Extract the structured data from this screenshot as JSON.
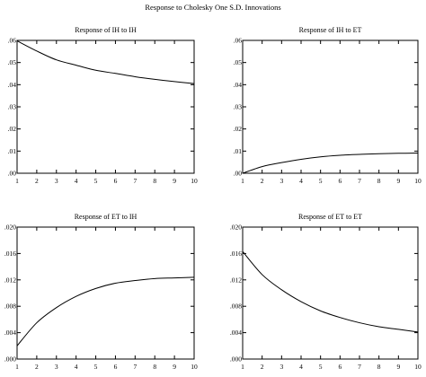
{
  "figure": {
    "title": "Response to Cholesky One S.D. Innovations"
  },
  "chart_data": [
    {
      "type": "line",
      "title": "Response of IH to IH",
      "x": [
        1,
        2,
        3,
        4,
        5,
        6,
        7,
        8,
        9,
        10
      ],
      "y": [
        0.0598,
        0.0552,
        0.0512,
        0.0488,
        0.0465,
        0.0451,
        0.0436,
        0.0424,
        0.0414,
        0.0405
      ],
      "ylim": [
        0,
        0.06
      ],
      "yticks": [
        ".00",
        ".01",
        ".02",
        ".03",
        ".04",
        ".05",
        ".06"
      ],
      "xticks": [
        "1",
        "2",
        "3",
        "4",
        "5",
        "6",
        "7",
        "8",
        "9",
        "10"
      ],
      "grid": false
    },
    {
      "type": "line",
      "title": "Response of IH to ET",
      "x": [
        1,
        2,
        3,
        4,
        5,
        6,
        7,
        8,
        9,
        10
      ],
      "y": [
        0.0,
        0.003,
        0.0048,
        0.0063,
        0.0074,
        0.0081,
        0.0085,
        0.0088,
        0.009,
        0.0091
      ],
      "ylim": [
        0,
        0.06
      ],
      "yticks": [
        ".00",
        ".01",
        ".02",
        ".03",
        ".04",
        ".05",
        ".06"
      ],
      "xticks": [
        "1",
        "2",
        "3",
        "4",
        "5",
        "6",
        "7",
        "8",
        "9",
        "10"
      ],
      "grid": false
    },
    {
      "type": "line",
      "title": "Response of ET to IH",
      "x": [
        1,
        2,
        3,
        4,
        5,
        6,
        7,
        8,
        9,
        10
      ],
      "y": [
        0.002,
        0.0055,
        0.0078,
        0.0095,
        0.0107,
        0.0115,
        0.0119,
        0.0122,
        0.0123,
        0.0124
      ],
      "ylim": [
        0,
        0.02
      ],
      "yticks": [
        ".000",
        ".004",
        ".008",
        ".012",
        ".016",
        ".020"
      ],
      "xticks": [
        "1",
        "2",
        "3",
        "4",
        "5",
        "6",
        "7",
        "8",
        "9",
        "10"
      ],
      "grid": false
    },
    {
      "type": "line",
      "title": "Response of ET to ET",
      "x": [
        1,
        2,
        3,
        4,
        5,
        6,
        7,
        8,
        9,
        10
      ],
      "y": [
        0.0163,
        0.0128,
        0.0105,
        0.0087,
        0.0073,
        0.0063,
        0.0055,
        0.0049,
        0.0045,
        0.0041
      ],
      "ylim": [
        0,
        0.02
      ],
      "yticks": [
        ".000",
        ".004",
        ".008",
        ".012",
        ".016",
        ".020"
      ],
      "xticks": [
        "1",
        "2",
        "3",
        "4",
        "5",
        "6",
        "7",
        "8",
        "9",
        "10"
      ],
      "grid": false
    }
  ]
}
